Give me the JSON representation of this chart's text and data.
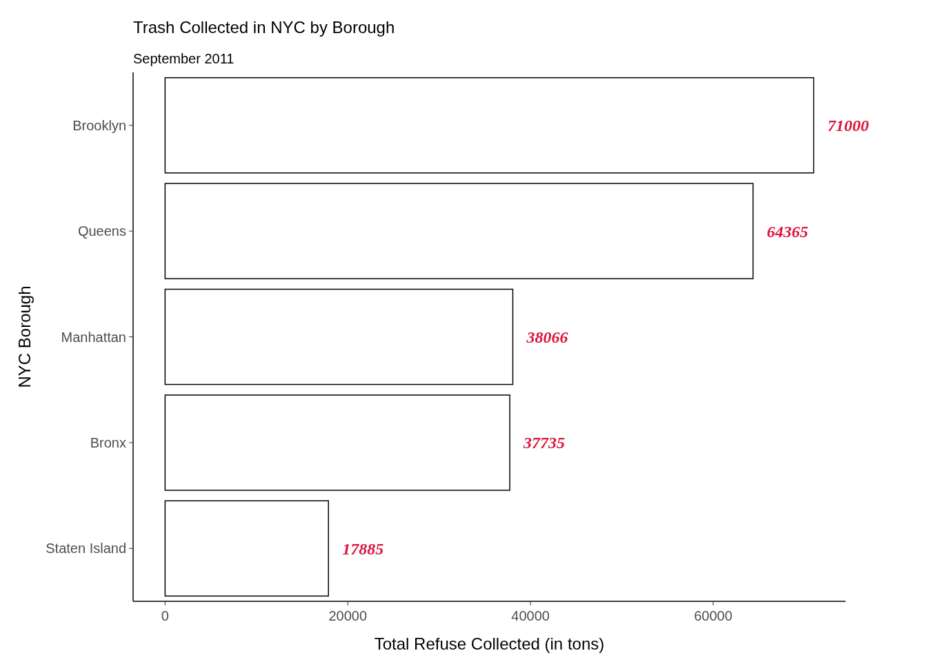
{
  "chart_data": {
    "type": "bar",
    "orientation": "horizontal",
    "title": "Trash Collected in NYC by Borough",
    "subtitle": "September 2011",
    "xlabel": "Total Refuse Collected (in tons)",
    "ylabel": "NYC Borough",
    "categories": [
      "Brooklyn",
      "Queens",
      "Manhattan",
      "Bronx",
      "Staten Island"
    ],
    "values": [
      71000,
      64365,
      38066,
      37735,
      17885
    ],
    "color": "#ffffff",
    "data_labels": true,
    "xlim": [
      -3500,
      74500
    ],
    "xticks": [
      0,
      20000,
      40000,
      60000
    ],
    "grid": false
  }
}
